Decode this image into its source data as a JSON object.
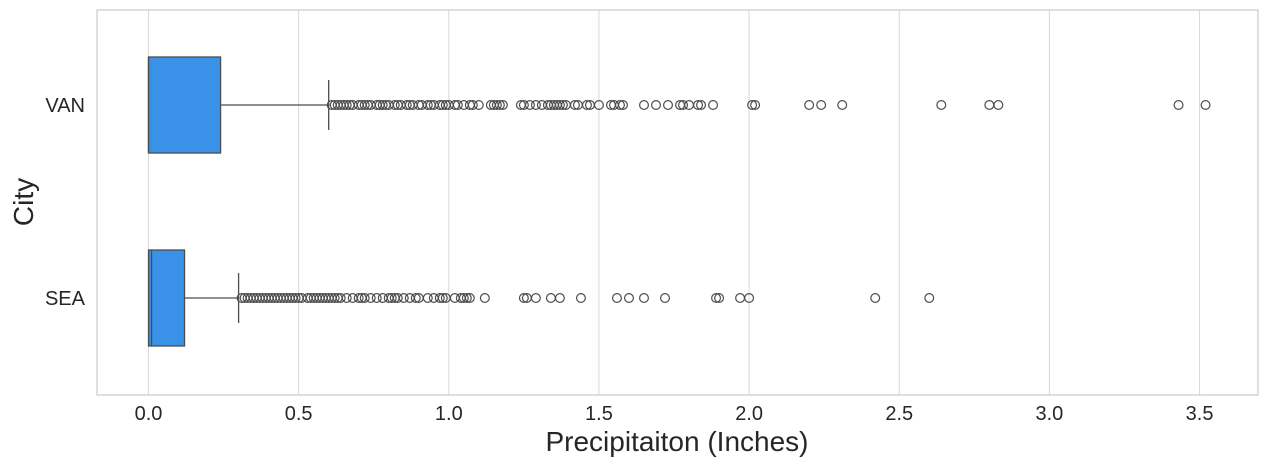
{
  "chart_data": {
    "type": "boxplot",
    "orientation": "horizontal",
    "title": "",
    "xlabel": "Precipitaiton (Inches)",
    "ylabel": "City",
    "xlim": [
      -0.17,
      3.7
    ],
    "x_ticks": [
      0.0,
      0.5,
      1.0,
      1.5,
      2.0,
      2.5,
      3.0,
      3.5
    ],
    "x_tick_labels": [
      "0.0",
      "0.5",
      "1.0",
      "1.5",
      "2.0",
      "2.5",
      "3.0",
      "3.5"
    ],
    "categories": [
      "VAN",
      "SEA"
    ],
    "grid": "vertical",
    "colors": {
      "box": "#3a91e8",
      "line": "#4d4d4d",
      "grid": "#d9d9d9",
      "frame": "#cccccc"
    },
    "boxes": [
      {
        "category": "VAN",
        "whisker_low": 0.0,
        "q1": 0.0,
        "median": 0.0,
        "q3": 0.24,
        "whisker_high": 0.6,
        "outliers": [
          0.61,
          0.62,
          0.63,
          0.64,
          0.65,
          0.66,
          0.67,
          0.68,
          0.7,
          0.71,
          0.72,
          0.73,
          0.74,
          0.76,
          0.77,
          0.78,
          0.79,
          0.8,
          0.82,
          0.83,
          0.84,
          0.86,
          0.87,
          0.88,
          0.9,
          0.91,
          0.93,
          0.94,
          0.95,
          0.97,
          0.98,
          0.99,
          1.0,
          1.02,
          1.03,
          1.05,
          1.07,
          1.08,
          1.1,
          1.14,
          1.15,
          1.16,
          1.17,
          1.18,
          1.24,
          1.25,
          1.27,
          1.29,
          1.31,
          1.33,
          1.34,
          1.35,
          1.36,
          1.37,
          1.38,
          1.39,
          1.42,
          1.43,
          1.46,
          1.47,
          1.5,
          1.54,
          1.55,
          1.57,
          1.58,
          1.65,
          1.69,
          1.73,
          1.77,
          1.78,
          1.8,
          1.83,
          1.84,
          1.88,
          2.01,
          2.02,
          2.2,
          2.24,
          2.31,
          2.64,
          2.8,
          2.83,
          3.43,
          3.52
        ]
      },
      {
        "category": "SEA",
        "whisker_low": 0.0,
        "q1": 0.0,
        "median": 0.01,
        "q3": 0.12,
        "whisker_high": 0.3,
        "outliers": [
          0.31,
          0.32,
          0.33,
          0.34,
          0.35,
          0.36,
          0.37,
          0.38,
          0.39,
          0.4,
          0.41,
          0.42,
          0.43,
          0.44,
          0.45,
          0.46,
          0.47,
          0.48,
          0.49,
          0.5,
          0.51,
          0.53,
          0.54,
          0.55,
          0.56,
          0.57,
          0.58,
          0.59,
          0.6,
          0.61,
          0.62,
          0.63,
          0.64,
          0.66,
          0.68,
          0.7,
          0.71,
          0.72,
          0.74,
          0.76,
          0.78,
          0.8,
          0.81,
          0.82,
          0.83,
          0.85,
          0.87,
          0.89,
          0.9,
          0.93,
          0.95,
          0.97,
          0.98,
          0.99,
          1.02,
          1.04,
          1.05,
          1.06,
          1.07,
          1.12,
          1.25,
          1.26,
          1.29,
          1.34,
          1.37,
          1.44,
          1.56,
          1.6,
          1.65,
          1.72,
          1.89,
          1.9,
          1.97,
          2.0,
          2.42,
          2.6
        ]
      }
    ]
  }
}
